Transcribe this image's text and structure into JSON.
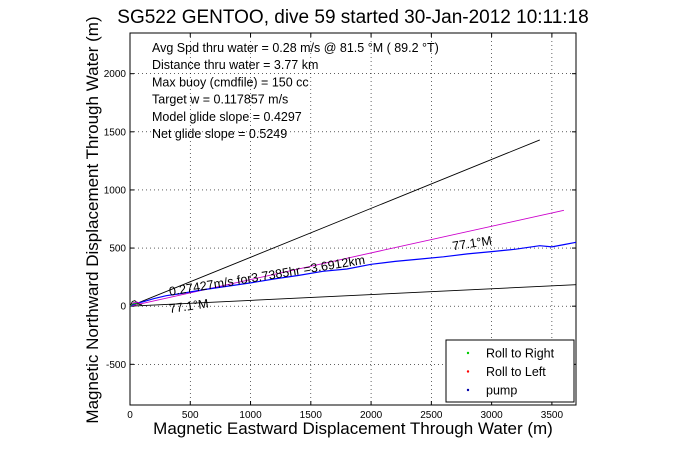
{
  "chart_data": {
    "type": "line",
    "title": "SG522 GENTOO, dive 59 started 30-Jan-2012 10:11:18",
    "xlabel": "Magnetic Eastward Displacement Through Water (m)",
    "ylabel": "Magnetic Northward Displacement Through Water (m)",
    "xlim": [
      0,
      3700
    ],
    "ylim": [
      -850,
      2350
    ],
    "xticks": [
      0,
      500,
      1000,
      1500,
      2000,
      2500,
      3000,
      3500
    ],
    "yticks": [
      -500,
      0,
      500,
      1000,
      1500,
      2000
    ],
    "grid": true,
    "info_lines": [
      "Avg Spd thru water =  0.28 m/s @  81.5   °M ( 89.2 °T)",
      "Distance thru water =  3.77 km",
      "Max buoy (cmdfile) = 150 cc",
      "Target w = 0.117857 m/s",
      "Model glide slope = 0.4297",
      "Net glide slope = 0.5249"
    ],
    "annotations": [
      {
        "text": "0.27427m/s for3.7385hr =3.6912km",
        "x": 330,
        "y": 90,
        "angle_deg": -9.3
      },
      {
        "text": "77.1°M",
        "x": 2680,
        "y": 480,
        "angle_deg": -8.5
      },
      {
        "text": "77.1°M",
        "x": 330,
        "y": -60,
        "angle_deg": -8.5
      }
    ],
    "series": [
      {
        "kind": "line",
        "color": "#000000",
        "x": [
          0,
          3400
        ],
        "y": [
          0,
          1430
        ]
      },
      {
        "kind": "line",
        "color": "#000000",
        "x": [
          0,
          3700
        ],
        "y": [
          0,
          185
        ]
      },
      {
        "kind": "line",
        "color": "#cc00cc",
        "x": [
          0,
          3600
        ],
        "y": [
          0,
          825
        ]
      },
      {
        "kind": "line",
        "color": "#0000ff",
        "x": [
          0,
          50,
          100,
          200,
          300,
          400,
          600,
          800,
          1000,
          1200,
          1400,
          1600,
          1800,
          2000,
          2200,
          2400,
          2600,
          2800,
          3000,
          3200,
          3400,
          3500,
          3600,
          3700
        ],
        "y": [
          0,
          25,
          35,
          65,
          90,
          105,
          140,
          170,
          200,
          235,
          265,
          300,
          320,
          360,
          385,
          405,
          425,
          450,
          470,
          490,
          520,
          510,
          530,
          550
        ]
      },
      {
        "kind": "line",
        "color": "#000000",
        "x": [
          0,
          20,
          40,
          60,
          80,
          100
        ],
        "y": [
          0,
          40,
          48,
          30,
          15,
          10
        ]
      },
      {
        "kind": "line",
        "color": "#cc00cc",
        "x": [
          0,
          30,
          60,
          90
        ],
        "y": [
          0,
          30,
          35,
          20
        ]
      },
      {
        "kind": "line",
        "color": "#00aa00",
        "x": [
          0,
          25,
          50,
          75
        ],
        "y": [
          0,
          20,
          25,
          15
        ]
      }
    ],
    "legend": {
      "location": "bottom-right",
      "entries": [
        {
          "label": "Roll to Right",
          "color": "#00cc00"
        },
        {
          "label": "Roll to Left",
          "color": "#ff0000"
        },
        {
          "label": "pump",
          "color": "#0000aa"
        }
      ]
    }
  }
}
